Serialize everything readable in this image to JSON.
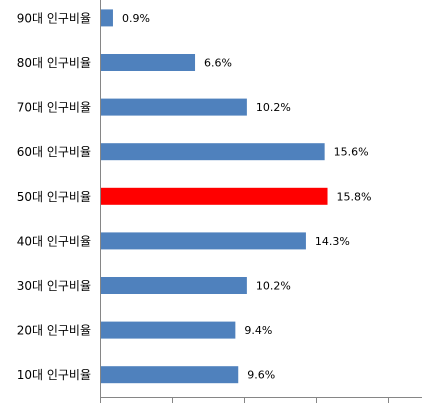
{
  "chart_data": {
    "type": "hbar",
    "categories": [
      "90대 인구비율",
      "80대 인구비율",
      "70대 인구비율",
      "60대 인구비율",
      "50대 인구비율",
      "40대 인구비율",
      "30대 인구비율",
      "20대 인구비율",
      "10대 인구비율"
    ],
    "values": [
      0.9,
      6.6,
      10.2,
      15.6,
      15.8,
      14.3,
      10.2,
      9.4,
      9.6
    ],
    "value_labels": [
      "0.9%",
      "6.6%",
      "10.2%",
      "15.6%",
      "15.8%",
      "14.3%",
      "10.2%",
      "9.4%",
      "9.6%"
    ],
    "colors": [
      "#4f81bd",
      "#4f81bd",
      "#4f81bd",
      "#4f81bd",
      "#ff0000",
      "#4f81bd",
      "#4f81bd",
      "#4f81bd",
      "#4f81bd"
    ],
    "xlim": [
      0,
      20
    ],
    "xticks": [
      0,
      5,
      10,
      15,
      20
    ]
  }
}
